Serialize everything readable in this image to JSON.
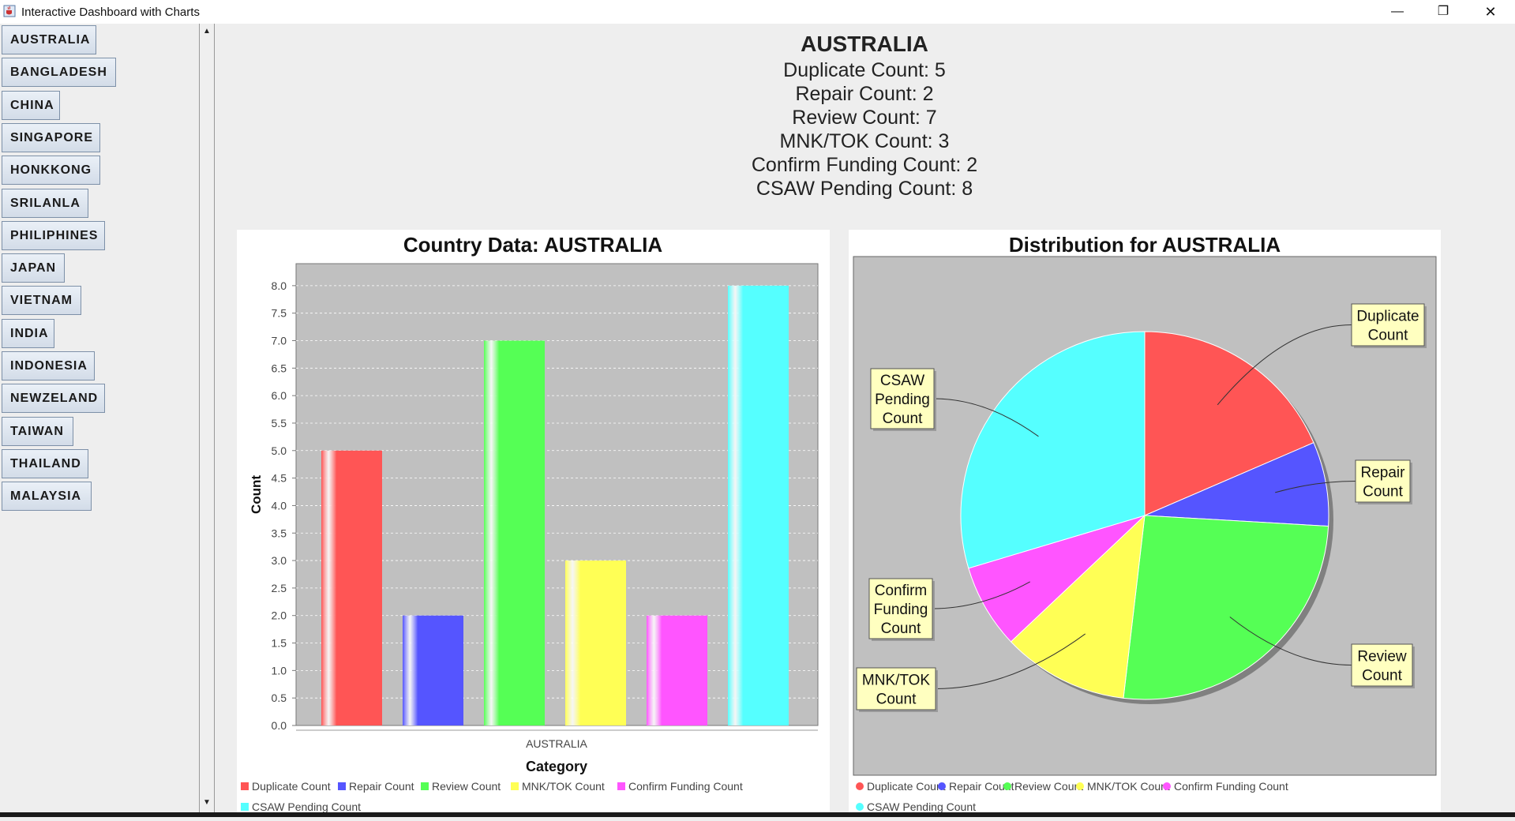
{
  "window": {
    "title": "Interactive Dashboard with Charts",
    "minimize": "—",
    "maximize": "❐",
    "close": "✕",
    "icon": "java-cup-icon"
  },
  "sidebar": {
    "countries": [
      "AUSTRALIA",
      "BANGLADESH",
      "CHINA",
      "SINGAPORE",
      "HONKKONG",
      "SRILANLA",
      "PHILIPHINES",
      "JAPAN",
      "VIETNAM",
      "INDIA",
      "INDONESIA",
      "NEWZELAND",
      "TAIWAN",
      "THAILAND",
      "MALAYSIA"
    ],
    "scroll_up": "▲",
    "scroll_down": "▼"
  },
  "summary": {
    "country": "AUSTRALIA",
    "lines": [
      "Duplicate Count: 5",
      "Repair Count: 2",
      "Review Count: 7",
      "MNK/TOK Count: 3",
      "Confirm Funding Count: 2",
      "CSAW Pending Count: 8"
    ]
  },
  "colors": {
    "plot_bg": "#c0c0c0",
    "duplicate": "#ff5555",
    "repair": "#5555ff",
    "review": "#55ff55",
    "mnktok": "#ffff55",
    "confirm": "#ff55ff",
    "csaw": "#55ffff"
  },
  "chart_data": [
    {
      "type": "bar",
      "title": "Country Data: AUSTRALIA",
      "xlabel": "Category",
      "ylabel": "Count",
      "categories": [
        "AUSTRALIA"
      ],
      "series": [
        {
          "name": "Duplicate Count",
          "values": [
            5
          ]
        },
        {
          "name": "Repair Count",
          "values": [
            2
          ]
        },
        {
          "name": "Review Count",
          "values": [
            7
          ]
        },
        {
          "name": "MNK/TOK Count",
          "values": [
            3
          ]
        },
        {
          "name": "Confirm Funding Count",
          "values": [
            2
          ]
        },
        {
          "name": "CSAW Pending Count",
          "values": [
            8
          ]
        }
      ],
      "ylim": [
        0,
        8.4
      ],
      "yticks": [
        "0.0",
        "0.5",
        "1.0",
        "1.5",
        "2.0",
        "2.5",
        "3.0",
        "3.5",
        "4.0",
        "4.5",
        "5.0",
        "5.5",
        "6.0",
        "6.5",
        "7.0",
        "7.5",
        "8.0"
      ],
      "grid": true,
      "legend": "bottom"
    },
    {
      "type": "pie",
      "title": "Distribution for AUSTRALIA",
      "slices": [
        {
          "name": "Duplicate Count",
          "value": 5,
          "label": [
            "Duplicate",
            "Count"
          ]
        },
        {
          "name": "Repair Count",
          "value": 2,
          "label": [
            "Repair",
            "Count"
          ]
        },
        {
          "name": "Review Count",
          "value": 7,
          "label": [
            "Review",
            "Count"
          ]
        },
        {
          "name": "MNK/TOK Count",
          "value": 3,
          "label": [
            "MNK/TOK",
            "Count"
          ]
        },
        {
          "name": "Confirm Funding Count",
          "value": 2,
          "label": [
            "Confirm",
            "Funding",
            "Count"
          ]
        },
        {
          "name": "CSAW Pending Count",
          "value": 8,
          "label": [
            "CSAW",
            "Pending",
            "Count"
          ]
        }
      ],
      "legend": "bottom"
    }
  ]
}
